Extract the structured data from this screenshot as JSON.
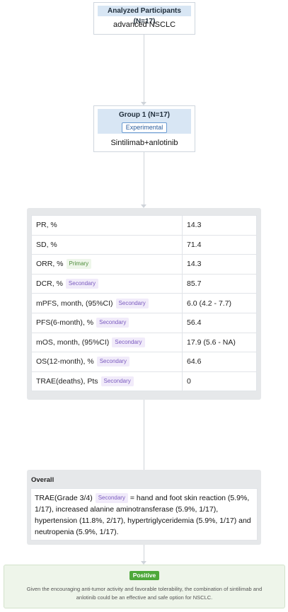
{
  "participants": {
    "header": "Analyzed Participants (N=17)",
    "condition": "advanced NSCLC"
  },
  "group": {
    "title": "Group 1 (N=17)",
    "tag": "Experimental",
    "intervention": "Sintilimab+anlotinib"
  },
  "outcomes": [
    {
      "label": "PR, %",
      "badge": "",
      "value": "14.3"
    },
    {
      "label": "SD, %",
      "badge": "",
      "value": "71.4"
    },
    {
      "label": "ORR, %",
      "badge": "Primary",
      "value": "14.3"
    },
    {
      "label": "DCR, %",
      "badge": "Secondary",
      "value": "85.7"
    },
    {
      "label": "mPFS, month, (95%CI)",
      "badge": "Secondary",
      "value": "6.0 (4.2 - 7.7)"
    },
    {
      "label": "PFS(6-month), %",
      "badge": "Secondary",
      "value": "56.4"
    },
    {
      "label": "mOS, month, (95%CI)",
      "badge": "Secondary",
      "value": "17.9 (5.6 - NA)"
    },
    {
      "label": "OS(12-month), %",
      "badge": "Secondary",
      "value": "64.6"
    },
    {
      "label": "TRAE(deaths), Pts",
      "badge": "Secondary",
      "value": "0"
    }
  ],
  "overall": {
    "title": "Overall",
    "label": "TRAE(Grade 3/4)",
    "badge": "Secondary",
    "text": "= hand and foot skin reaction (5.9%, 1/17), increased alanine aminotransferase (5.9%, 1/17), hypertension (11.8%, 2/17), hypertriglyceridemia (5.9%, 1/17) and neutropenia (5.9%, 1/17)."
  },
  "conclusion": {
    "tag": "Positive",
    "text": "Given the encouraging anti-tumor activity and favorable tolerability, the combination of sintilimab and anlotinib could be an effective and safe option for NSCLC."
  },
  "colors": {
    "header_bg": "#d8e6f4",
    "primary": "#4d8c3a",
    "secondary": "#7b5bbf",
    "positive": "#4ea83a"
  }
}
